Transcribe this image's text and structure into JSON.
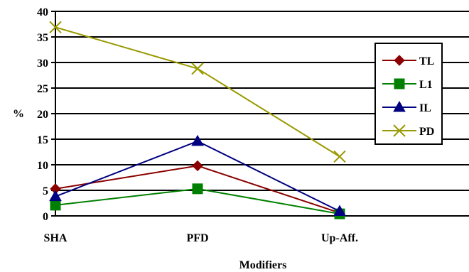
{
  "chart_data": {
    "type": "line",
    "categories": [
      "SHA",
      "PFD",
      "Up-Aff."
    ],
    "xlabel": "Modifiers",
    "ylabel": "%",
    "ylim": [
      0,
      40
    ],
    "yticks": [
      0,
      5,
      10,
      15,
      20,
      25,
      30,
      35,
      40
    ],
    "grid": "horizontal",
    "legend_position": "right",
    "series": [
      {
        "name": "TL",
        "values": [
          5.3,
          9.8,
          0.6
        ],
        "color": "#8B0000",
        "marker": "diamond"
      },
      {
        "name": "L1",
        "values": [
          2.1,
          5.3,
          0.4
        ],
        "color": "#008000",
        "marker": "square"
      },
      {
        "name": "IL",
        "values": [
          3.8,
          14.6,
          0.9
        ],
        "color": "#000080",
        "marker": "triangle"
      },
      {
        "name": "PD",
        "values": [
          36.9,
          28.8,
          11.6
        ],
        "color": "#999900",
        "marker": "x"
      }
    ]
  }
}
